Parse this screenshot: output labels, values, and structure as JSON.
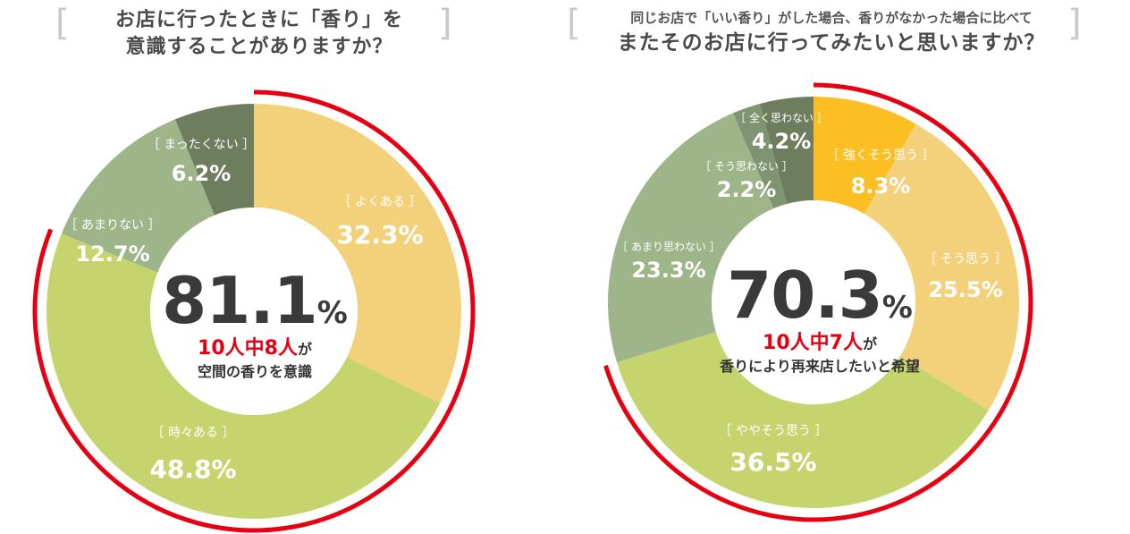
{
  "colors": {
    "accent_ring": "#e60012",
    "often": "#f3d17b",
    "sometimes": "#c6d46d",
    "not_much": "#9eb58a",
    "never": "#6f7d5f",
    "strong_yes": "#fbbf24",
    "text_dark": "#3a3a3a"
  },
  "chart_data": [
    {
      "type": "pie",
      "title": "お店に行ったときに「香り」を 意識することがありますか？",
      "title_lines": [
        "お店に行ったときに「香り」を",
        "意識することがありますか？"
      ],
      "bracket_left": "[",
      "bracket_right": "]",
      "slices": [
        {
          "label": "［ よくある ］",
          "value": 32.3,
          "display": "32.3%",
          "color": "#f3d17b"
        },
        {
          "label": "［ 時々ある ］",
          "value": 48.8,
          "display": "48.8%",
          "color": "#c6d46d"
        },
        {
          "label": "［ あまりない ］",
          "value": 12.7,
          "display": "12.7%",
          "color": "#9eb58a"
        },
        {
          "label": "［ まったくない ］",
          "value": 6.2,
          "display": "6.2%",
          "color": "#6f7d5f"
        }
      ],
      "highlight_total": 81.1,
      "center": {
        "value": "81.1",
        "unit": "%",
        "red_text": "10人中8人",
        "suffix": "が",
        "desc": "空間の香りを意識"
      }
    },
    {
      "type": "pie",
      "title": "同じお店で「いい香り」がした場合、香りがなかった場合に比べて またそのお店に行ってみたいと思いますか？",
      "title_lines": [
        "同じお店で「いい香り」がした場合、香りがなかった場合に比べて",
        "またそのお店に行ってみたいと思いますか？"
      ],
      "bracket_left": "[",
      "bracket_right": "]",
      "slices": [
        {
          "label": "［ 強くそう思う ］",
          "value": 8.3,
          "display": "8.3%",
          "color": "#fbbf24"
        },
        {
          "label": "［ そう思う ］",
          "value": 25.5,
          "display": "25.5%",
          "color": "#f3d17b"
        },
        {
          "label": "［ ややそう思う ］",
          "value": 36.5,
          "display": "36.5%",
          "color": "#c6d46d"
        },
        {
          "label": "［ あまり思わない ］",
          "value": 23.3,
          "display": "23.3%",
          "color": "#9eb58a"
        },
        {
          "label": "［ そう思わない ］",
          "value": 2.2,
          "display": "2.2%",
          "color": "#7f9470"
        },
        {
          "label": "［ 全く思わない ］",
          "value": 4.2,
          "display": "4.2%",
          "color": "#6f7d5f"
        }
      ],
      "highlight_total": 70.3,
      "center": {
        "value": "70.3",
        "unit": "%",
        "red_text": "10人中7人",
        "suffix": "が",
        "desc": "香りにより再来店したいと希望"
      }
    }
  ]
}
